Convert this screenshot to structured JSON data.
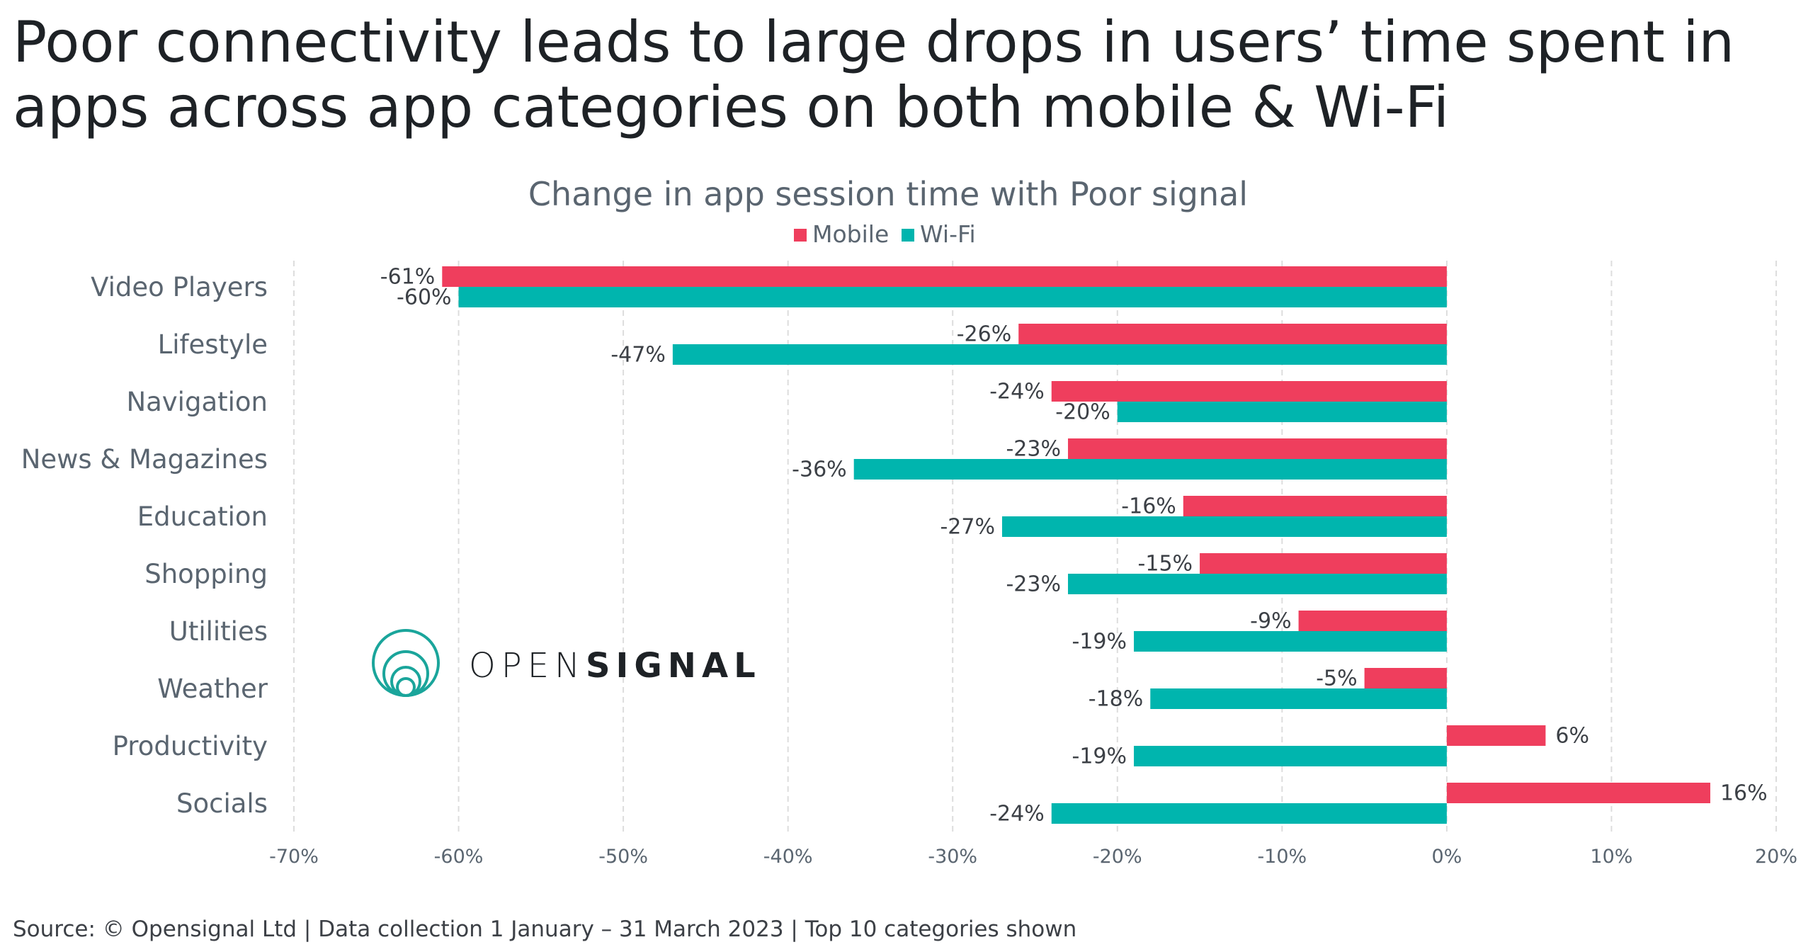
{
  "headline": {
    "line1": "Poor connectivity leads to large drops in users’ time spent in",
    "line2": "apps across app categories on both mobile & Wi-Fi"
  },
  "logo": {
    "text_light": "OPEN",
    "text_bold": "SIGNAL"
  },
  "source": "Source: © Opensignal Ltd  |  Data collection 1 January – 31 March 2023  |  Top 10 categories shown",
  "colors": {
    "mobile": "#ef3e5d",
    "wifi": "#00b5ae",
    "text": "#5a6570",
    "grid": "#dddddd",
    "logo": "#1aa59b"
  },
  "chart_data": {
    "type": "bar",
    "orientation": "horizontal",
    "title": "Change in app session time with Poor signal",
    "categories": [
      "Video Players",
      "Lifestyle",
      "Navigation",
      "News & Magazines",
      "Education",
      "Shopping",
      "Utilities",
      "Weather",
      "Productivity",
      "Socials"
    ],
    "series": [
      {
        "name": "Mobile",
        "color": "#ef3e5d",
        "values": [
          -61,
          -26,
          -24,
          -23,
          -16,
          -15,
          -9,
          -5,
          6,
          16
        ],
        "labels": [
          "-61%",
          "-26%",
          "-24%",
          "-23%",
          "-16%",
          "-15%",
          "-9%",
          "-5%",
          "6%",
          "16%"
        ]
      },
      {
        "name": "Wi-Fi",
        "color": "#00b5ae",
        "values": [
          -60,
          -47,
          -20,
          -36,
          -27,
          -23,
          -19,
          -18,
          -19,
          -24
        ],
        "labels": [
          "-60%",
          "-47%",
          "-20%",
          "-36%",
          "-27%",
          "-23%",
          "-19%",
          "-18%",
          "-19%",
          "-24%"
        ]
      }
    ],
    "xlim": [
      -70,
      20
    ],
    "xticks": [
      -70,
      -60,
      -50,
      -40,
      -30,
      -20,
      -10,
      0,
      10,
      20
    ],
    "xtick_labels": [
      "-70%",
      "-60%",
      "-50%",
      "-40%",
      "-30%",
      "-20%",
      "-10%",
      "0%",
      "10%",
      "20%"
    ],
    "grid": true,
    "legend": "top-center"
  }
}
